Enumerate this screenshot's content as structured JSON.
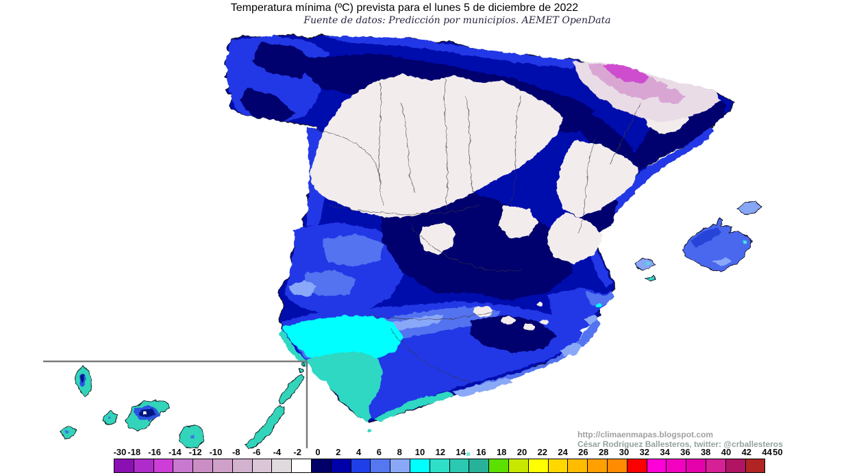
{
  "header": {
    "title": "Temperatura mínima (ºC) prevista para el lunes 5 de diciembre de 2022",
    "subtitle": "Fuente de datos: Predicción por municipios. AEMET OpenData"
  },
  "credits": {
    "line1": "http://climaenmapas.blogspot.com",
    "line2": "César Rodríguez Ballesteros, twitter: @crballesteros"
  },
  "legend": {
    "title": "temperature-scale-celsius",
    "labels": [
      "-30",
      "-18",
      "-16",
      "-14",
      "-12",
      "-10",
      "-8",
      "-6",
      "-4",
      "-2",
      "0",
      "2",
      "4",
      "6",
      "8",
      "10",
      "12",
      "14",
      "16",
      "18",
      "20",
      "22",
      "24",
      "26",
      "28",
      "30",
      "32",
      "34",
      "36",
      "38",
      "40",
      "42",
      "44",
      "50"
    ],
    "colors": [
      "#8a10b4",
      "#ae2cca",
      "#cd3ed8",
      "#c979cf",
      "#cb8ec4",
      "#cfa0c8",
      "#d3b2cf",
      "#dbc6d8",
      "#e0dade",
      "#ffffff",
      "#000068",
      "#0000a8",
      "#1f3fe8",
      "#5578f0",
      "#8aa8f8",
      "#00ffff",
      "#2fdfc8",
      "#2cc9b2",
      "#28b29b",
      "#5ce000",
      "#c8e800",
      "#ffff00",
      "#ffd800",
      "#ffbc00",
      "#ffa000",
      "#ff8c00",
      "#fa0000",
      "#ff00d8",
      "#f202c0",
      "#e400aa",
      "#d62096",
      "#b01462",
      "#b02424"
    ]
  },
  "map_palette": {
    "navy_base": "#0407ad",
    "dark_navy": "#00006e",
    "royal_blue": "#2138e6",
    "medium_blue": "#5273f0",
    "periwinkle": "#8aa8f8",
    "cyan": "#00ffff",
    "turquoise": "#2fd8c2",
    "cold_white": "#f2edec",
    "pale_pink": "#e9dce6",
    "pink": "#d9a6d4",
    "magenta": "#ce4ecf",
    "island_teal": "#31d4ba"
  }
}
